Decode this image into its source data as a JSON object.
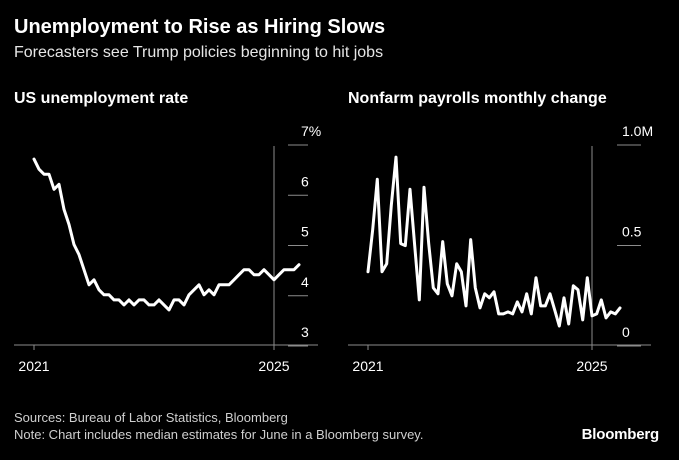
{
  "title": "Unemployment to Rise as Hiring Slows",
  "subtitle": "Forecasters see Trump policies beginning to hit jobs",
  "source": "Sources: Bureau of Labor Statistics, Bloomberg",
  "note": "Note: Chart includes median estimates for June in a Bloomberg survey.",
  "brand": "Bloomberg",
  "colors": {
    "background": "#000000",
    "line": "#ffffff",
    "axis": "#8c8c8c",
    "text": "#ffffff"
  },
  "chart_data": [
    {
      "type": "line",
      "title": "US unemployment rate",
      "xlabel": "",
      "ylabel": "",
      "xlim": [
        2021.0,
        2025.5
      ],
      "ylim": [
        3,
        7
      ],
      "x_ticks": [
        {
          "value": 2021,
          "label": "2021"
        },
        {
          "value": 2025,
          "label": "2025"
        }
      ],
      "y_ticks": [
        {
          "value": 7,
          "label": "7%"
        },
        {
          "value": 6,
          "label": "6"
        },
        {
          "value": 5,
          "label": "5"
        },
        {
          "value": 4,
          "label": "4"
        },
        {
          "value": 3,
          "label": "3"
        }
      ],
      "series": [
        {
          "name": "Unemployment rate (%)",
          "x_start": 2021.0,
          "x_step": 0.0833333,
          "values": [
            6.4,
            6.2,
            6.1,
            6.1,
            5.8,
            5.9,
            5.4,
            5.1,
            4.7,
            4.5,
            4.2,
            3.9,
            4.0,
            3.8,
            3.7,
            3.7,
            3.6,
            3.6,
            3.5,
            3.6,
            3.5,
            3.6,
            3.6,
            3.5,
            3.5,
            3.6,
            3.5,
            3.4,
            3.6,
            3.6,
            3.5,
            3.7,
            3.8,
            3.9,
            3.7,
            3.8,
            3.7,
            3.9,
            3.9,
            3.9,
            4.0,
            4.1,
            4.2,
            4.2,
            4.1,
            4.1,
            4.2,
            4.1,
            4.0,
            4.1,
            4.2,
            4.2,
            4.2,
            4.3
          ]
        }
      ]
    },
    {
      "type": "line",
      "title": "Nonfarm payrolls monthly change",
      "xlabel": "",
      "ylabel": "",
      "xlim": [
        2021.0,
        2025.5
      ],
      "ylim": [
        0,
        1.0
      ],
      "x_ticks": [
        {
          "value": 2021,
          "label": "2021"
        },
        {
          "value": 2025,
          "label": "2025"
        }
      ],
      "y_ticks": [
        {
          "value": 1.0,
          "label": "1.0M"
        },
        {
          "value": 0.5,
          "label": "0.5"
        },
        {
          "value": 0,
          "label": "0"
        }
      ],
      "series": [
        {
          "name": "Monthly change (millions)",
          "x_start": 2021.0,
          "x_step": 0.0833333,
          "values": [
            0.29,
            0.5,
            0.75,
            0.29,
            0.33,
            0.62,
            0.86,
            0.43,
            0.42,
            0.7,
            0.42,
            0.15,
            0.71,
            0.43,
            0.21,
            0.18,
            0.44,
            0.23,
            0.17,
            0.33,
            0.29,
            0.12,
            0.45,
            0.21,
            0.11,
            0.18,
            0.16,
            0.19,
            0.08,
            0.08,
            0.09,
            0.08,
            0.14,
            0.09,
            0.18,
            0.08,
            0.26,
            0.12,
            0.12,
            0.18,
            0.1,
            0.02,
            0.16,
            0.03,
            0.22,
            0.2,
            0.05,
            0.26,
            0.07,
            0.08,
            0.15,
            0.06,
            0.09,
            0.08,
            0.11
          ]
        }
      ]
    }
  ]
}
